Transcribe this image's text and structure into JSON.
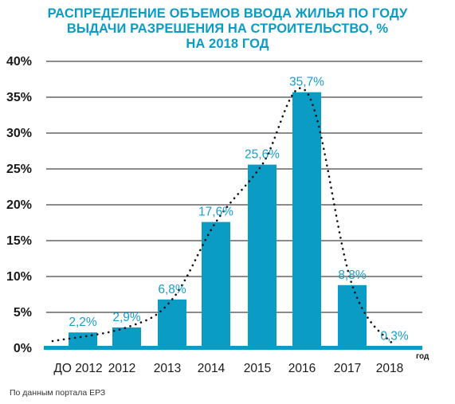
{
  "chart_data": {
    "type": "bar",
    "title_lines": [
      "РАСПРЕДЕЛЕНИЕ ОБЪЕМОВ ВВОДА ЖИЛЬЯ ПО ГОДУ",
      "ВЫДАЧИ РАЗРЕШЕНИЯ НА СТРОИТЕЛЬСТВО, %",
      "НА 2018 ГОД"
    ],
    "categories": [
      "ДО 2012",
      "2012",
      "2013",
      "2014",
      "2015",
      "2016",
      "2017",
      "2018"
    ],
    "values": [
      2.2,
      2.9,
      6.8,
      17.6,
      25.6,
      35.7,
      8.8,
      0.3
    ],
    "data_labels": [
      "2,2%",
      "2,9%",
      "6,8%",
      "17,6%",
      "25,6%",
      "35,7%",
      "8,8%",
      "0,3%"
    ],
    "y_ticks": [
      "0%",
      "5%",
      "10%",
      "15%",
      "20%",
      "25%",
      "30%",
      "35%",
      "40%"
    ],
    "ylim": [
      0,
      40
    ],
    "xlabel": "год",
    "grid": true,
    "trend_line": "dotted",
    "colors": {
      "bar": "#0a9cc4",
      "title": "#0a9cc4",
      "label": "#1a9dc7",
      "grid": "#1a1a1a"
    }
  },
  "source": "По данным портала ЕРЗ"
}
